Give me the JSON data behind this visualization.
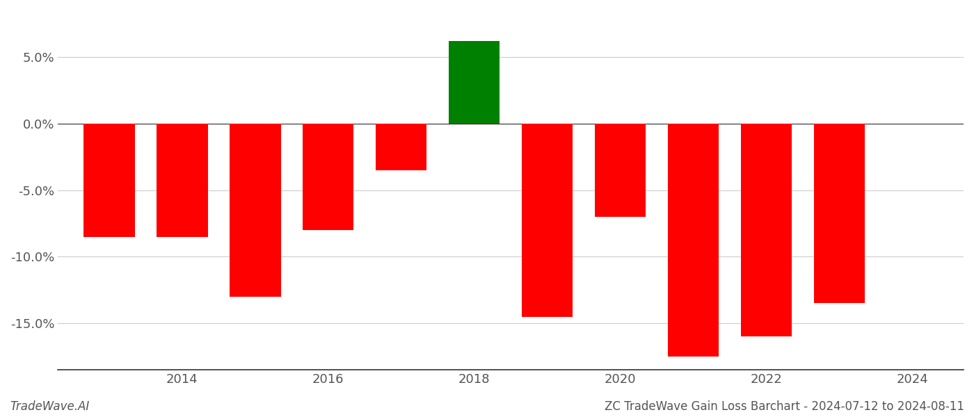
{
  "years": [
    2013,
    2014,
    2015,
    2016,
    2017,
    2018,
    2019,
    2020,
    2021,
    2022,
    2023
  ],
  "values": [
    -8.5,
    -8.5,
    -13.0,
    -8.0,
    -3.5,
    6.2,
    -14.5,
    -7.0,
    -17.5,
    -16.0,
    -13.5
  ],
  "bar_colors": [
    "red",
    "red",
    "red",
    "red",
    "red",
    "green",
    "red",
    "red",
    "red",
    "red",
    "red"
  ],
  "xticks": [
    2014,
    2016,
    2018,
    2020,
    2022,
    2024
  ],
  "xlim": [
    2012.3,
    2024.7
  ],
  "ylim": [
    -18.5,
    8.5
  ],
  "yticks": [
    5.0,
    0.0,
    -5.0,
    -10.0,
    -15.0
  ],
  "footer_left": "TradeWave.AI",
  "footer_right": "ZC TradeWave Gain Loss Barchart - 2024-07-12 to 2024-08-11",
  "background_color": "#ffffff",
  "grid_color": "#cccccc",
  "bar_width": 0.7
}
